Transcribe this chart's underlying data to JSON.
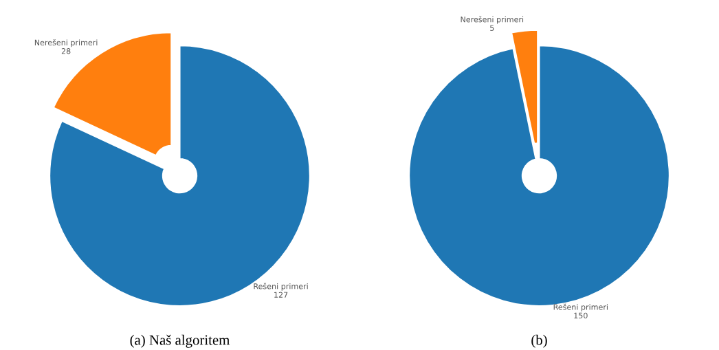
{
  "chart_data": [
    {
      "type": "donut",
      "title": "(a) Naš algoritem",
      "categories": [
        "Rešeni primeri",
        "Nerešeni primeri"
      ],
      "values": [
        127,
        28
      ],
      "colors": [
        "#1f77b4",
        "#ff7f0e"
      ],
      "data_labels": true,
      "legend": false
    },
    {
      "type": "donut",
      "title": "(b)",
      "categories": [
        "Rešeni primeri",
        "Nerešeni primeri"
      ],
      "values": [
        150,
        5
      ],
      "colors": [
        "#1f77b4",
        "#ff7f0e"
      ],
      "data_labels": true,
      "legend": false
    }
  ]
}
